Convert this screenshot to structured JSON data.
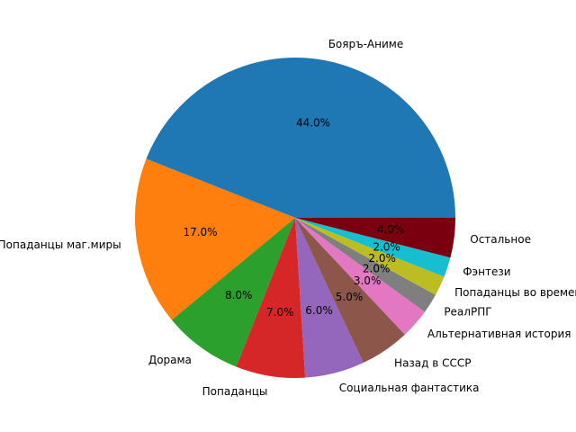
{
  "chart_data": {
    "type": "pie",
    "categories": [
      "Бояръ-Аниме",
      "Попаданцы маг.миры",
      "Дорама",
      "Попаданцы",
      "Социальная фантастика",
      "Назад в СССР",
      "Альтернативная история",
      "РеалРПГ",
      "Попаданцы во времени",
      "Фэнтези",
      "Остальное"
    ],
    "values": [
      44,
      17,
      8,
      7,
      6,
      5,
      3,
      2,
      2,
      2,
      4
    ],
    "value_labels": [
      "44.0%",
      "17.0%",
      "8.0%",
      "7.0%",
      "6.0%",
      "5.0%",
      "3.0%",
      "2.0%",
      "2.0%",
      "2.0%",
      "4.0%"
    ],
    "colors": [
      "#1f77b4",
      "#ff7f0e",
      "#2ca02c",
      "#d62728",
      "#9467bd",
      "#8c564b",
      "#e377c2",
      "#7f7f7f",
      "#bcbd22",
      "#17becf",
      "#7a0010"
    ]
  }
}
